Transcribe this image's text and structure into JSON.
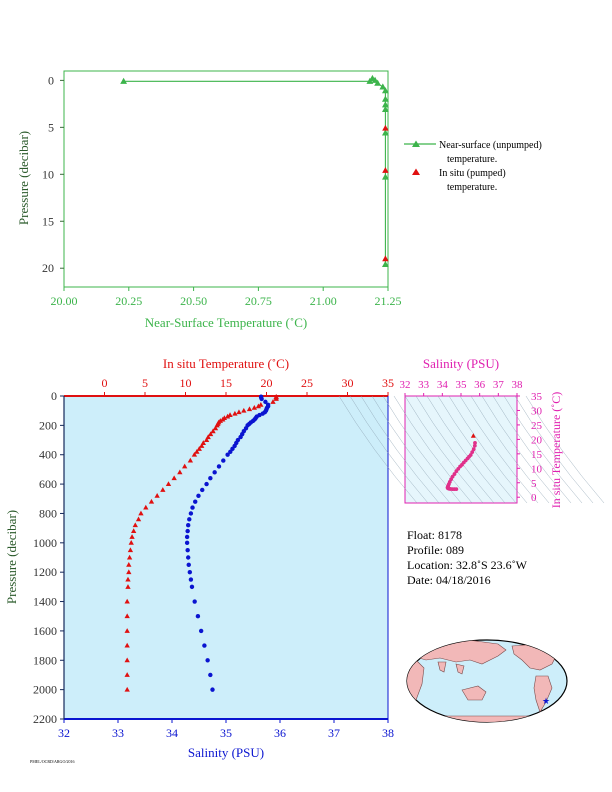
{
  "colors": {
    "temp_line": "#3cb44b",
    "temp_axis": "#3cb44b",
    "insitu": "#e01010",
    "salinity": "#0a14d0",
    "ts_axis": "#e020b0",
    "ts_points": "#e0308a",
    "plot_bg": "#cdeefa",
    "ts_bg": "#e6f6fc",
    "land": "#f2b8b8",
    "ocean": "#cdeefa",
    "float_marker": "#0a14d0"
  },
  "chart_data": [
    {
      "id": "near_surface",
      "type": "scatter",
      "xlabel": "Near-Surface Temperature (˚C)",
      "ylabel": "Pressure (decibar)",
      "xlim": [
        20.0,
        21.25
      ],
      "ylim": [
        22,
        -1
      ],
      "x_ticks": [
        "20.00",
        "20.25",
        "20.50",
        "20.75",
        "21.00",
        "21.25"
      ],
      "y_ticks": [
        "0",
        "5",
        "10",
        "15",
        "20"
      ],
      "series": [
        {
          "name": "Near-surface (unpumped) temperature.",
          "marker": "triangle",
          "connected": true,
          "points": [
            {
              "x": 20.23,
              "y": 0.1
            },
            {
              "x": 21.18,
              "y": 0.1
            },
            {
              "x": 21.19,
              "y": -0.2
            },
            {
              "x": 21.2,
              "y": 0.0
            },
            {
              "x": 21.21,
              "y": 0.3
            },
            {
              "x": 21.23,
              "y": 0.7
            },
            {
              "x": 21.24,
              "y": 1.1
            },
            {
              "x": 21.24,
              "y": 2.0
            },
            {
              "x": 21.24,
              "y": 2.6
            },
            {
              "x": 21.24,
              "y": 3.1
            },
            {
              "x": 21.24,
              "y": 5.6
            },
            {
              "x": 21.24,
              "y": 10.3
            },
            {
              "x": 21.24,
              "y": 19.6
            }
          ]
        },
        {
          "name": "In situ (pumped) temperature.",
          "marker": "triangle",
          "connected": false,
          "points": [
            {
              "x": 21.24,
              "y": 5.1
            },
            {
              "x": 21.24,
              "y": 9.6
            },
            {
              "x": 21.24,
              "y": 19.0
            }
          ]
        }
      ],
      "legend": [
        {
          "line1": "Near-surface (unpumped)",
          "line2": "temperature."
        },
        {
          "line1": "In situ (pumped)",
          "line2": "temperature."
        }
      ]
    },
    {
      "id": "profile",
      "type": "scatter",
      "title_top": "In situ Temperature (˚C)",
      "xlabel": "Salinity (PSU)",
      "ylabel": "Pressure (decibar)",
      "salinity_lim": [
        32,
        38
      ],
      "temp_lim": [
        -5,
        35
      ],
      "pressure_lim": [
        0,
        2200
      ],
      "salinity_ticks": [
        "32",
        "33",
        "34",
        "35",
        "36",
        "37",
        "38"
      ],
      "temp_ticks": [
        "0",
        "5",
        "10",
        "15",
        "20",
        "25",
        "30",
        "35"
      ],
      "pressure_ticks": [
        "0",
        "200",
        "400",
        "600",
        "800",
        "1000",
        "1200",
        "1400",
        "1600",
        "1800",
        "2000",
        "2200"
      ],
      "temperature": {
        "name": "In situ Temperature",
        "pressure": [
          5,
          10,
          20,
          40,
          60,
          70,
          80,
          90,
          100,
          110,
          120,
          130,
          140,
          150,
          160,
          170,
          180,
          190,
          200,
          220,
          240,
          260,
          280,
          300,
          320,
          340,
          360,
          380,
          400,
          440,
          480,
          520,
          560,
          600,
          640,
          680,
          720,
          760,
          800,
          840,
          880,
          920,
          960,
          1000,
          1050,
          1100,
          1150,
          1200,
          1250,
          1300,
          1400,
          1500,
          1600,
          1700,
          1800,
          1900,
          2000
        ],
        "values": [
          21.2,
          21.2,
          21.2,
          20.8,
          19.3,
          19.0,
          18.5,
          17.9,
          17.2,
          16.6,
          16.1,
          15.5,
          15.2,
          14.8,
          14.6,
          14.3,
          14.1,
          14.0,
          13.9,
          13.7,
          13.4,
          13.1,
          12.8,
          12.6,
          12.2,
          12.0,
          11.7,
          11.4,
          11.1,
          10.6,
          9.9,
          9.3,
          8.6,
          7.9,
          7.2,
          6.5,
          5.8,
          5.1,
          4.5,
          4.2,
          3.8,
          3.6,
          3.4,
          3.3,
          3.2,
          3.1,
          3.0,
          3.0,
          2.9,
          2.9,
          2.8,
          2.8,
          2.8,
          2.8,
          2.8,
          2.8,
          2.8
        ]
      },
      "salinity": {
        "name": "Salinity",
        "pressure": [
          5,
          10,
          20,
          40,
          60,
          70,
          80,
          90,
          100,
          110,
          120,
          130,
          140,
          150,
          160,
          170,
          180,
          190,
          200,
          220,
          240,
          260,
          280,
          300,
          320,
          340,
          360,
          380,
          400,
          440,
          480,
          520,
          560,
          600,
          640,
          680,
          720,
          760,
          800,
          840,
          880,
          920,
          960,
          1000,
          1050,
          1100,
          1150,
          1200,
          1250,
          1300,
          1400,
          1500,
          1600,
          1700,
          1800,
          1900,
          2000
        ],
        "values": [
          35.65,
          35.65,
          35.66,
          35.73,
          35.78,
          35.78,
          35.76,
          35.75,
          35.74,
          35.72,
          35.68,
          35.62,
          35.57,
          35.55,
          35.53,
          35.5,
          35.46,
          35.43,
          35.4,
          35.37,
          35.33,
          35.3,
          35.27,
          35.22,
          35.19,
          35.16,
          35.12,
          35.08,
          35.03,
          34.95,
          34.87,
          34.79,
          34.71,
          34.64,
          34.56,
          34.49,
          34.43,
          34.38,
          34.35,
          34.32,
          34.3,
          34.29,
          34.28,
          34.28,
          34.29,
          34.3,
          34.31,
          34.33,
          34.35,
          34.37,
          34.42,
          34.48,
          34.54,
          34.6,
          34.66,
          34.71,
          34.75
        ]
      }
    },
    {
      "id": "ts_diagram",
      "type": "scatter",
      "xlabel": "Salinity (PSU)",
      "ylabel": "In situ Temperature (˚C)",
      "xlim": [
        32,
        38
      ],
      "ylim": [
        -2,
        35
      ],
      "x_ticks": [
        "32",
        "33",
        "34",
        "35",
        "36",
        "37",
        "38"
      ],
      "y_ticks": [
        "0",
        "5",
        "10",
        "15",
        "20",
        "25",
        "30",
        "35"
      ],
      "series": [
        {
          "name": "T-S",
          "points": [
            {
              "x": 35.66,
              "y": 21.2
            },
            {
              "x": 35.75,
              "y": 18.8
            },
            {
              "x": 35.74,
              "y": 17.8
            },
            {
              "x": 35.68,
              "y": 16.6
            },
            {
              "x": 35.6,
              "y": 15.6
            },
            {
              "x": 35.52,
              "y": 14.6
            },
            {
              "x": 35.43,
              "y": 14.0
            },
            {
              "x": 35.35,
              "y": 13.4
            },
            {
              "x": 35.25,
              "y": 12.7
            },
            {
              "x": 35.15,
              "y": 12.0
            },
            {
              "x": 35.05,
              "y": 11.2
            },
            {
              "x": 34.95,
              "y": 10.6
            },
            {
              "x": 34.85,
              "y": 9.8
            },
            {
              "x": 34.75,
              "y": 9.0
            },
            {
              "x": 34.65,
              "y": 8.0
            },
            {
              "x": 34.55,
              "y": 7.1
            },
            {
              "x": 34.47,
              "y": 6.2
            },
            {
              "x": 34.4,
              "y": 5.3
            },
            {
              "x": 34.35,
              "y": 4.5
            },
            {
              "x": 34.31,
              "y": 3.9
            },
            {
              "x": 34.29,
              "y": 3.5
            },
            {
              "x": 34.28,
              "y": 3.3
            },
            {
              "x": 34.3,
              "y": 3.1
            },
            {
              "x": 34.33,
              "y": 3.0
            },
            {
              "x": 34.38,
              "y": 2.9
            },
            {
              "x": 34.45,
              "y": 2.85
            },
            {
              "x": 34.55,
              "y": 2.8
            },
            {
              "x": 34.65,
              "y": 2.8
            },
            {
              "x": 34.75,
              "y": 2.8
            }
          ]
        }
      ]
    }
  ],
  "float_info": {
    "float": "Float:  8178",
    "profile": "Profile:  089",
    "location": "Location:  32.8˚S  23.6˚W",
    "date": "Date:  04/18/2016"
  },
  "footer_text": "PMEL/OCRD/ARGO/2016"
}
